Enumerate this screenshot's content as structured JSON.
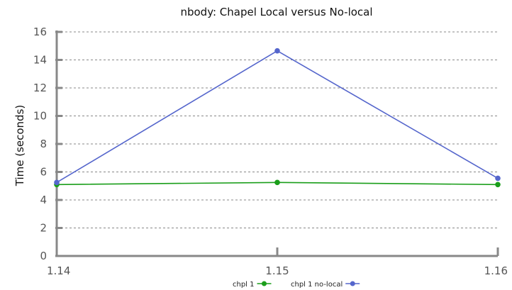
{
  "chart_data": {
    "type": "line",
    "title": "nbody: Chapel Local versus No-local",
    "xlabel": "",
    "ylabel": "Time (seconds)",
    "x": [
      "1.14",
      "1.15",
      "1.16"
    ],
    "ylim": [
      0,
      16
    ],
    "yticks": [
      0,
      2,
      4,
      6,
      8,
      10,
      12,
      14,
      16
    ],
    "grid": true,
    "legend_position": "bottom",
    "series": [
      {
        "name": "chpl 1",
        "color": "#1a9e1a",
        "values": [
          5.1,
          5.25,
          5.1
        ]
      },
      {
        "name": "chpl 1 no-local",
        "color": "#5566cc",
        "values": [
          5.25,
          14.65,
          5.55
        ]
      }
    ]
  }
}
